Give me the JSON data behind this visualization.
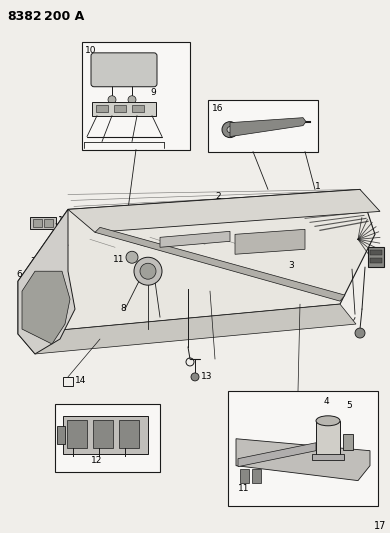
{
  "background_color": "#f0eeea",
  "line_color": "#1a1a1a",
  "text_color": "#000000",
  "fig_width": 3.9,
  "fig_height": 5.33,
  "dpi": 100,
  "header": "8382  200 A",
  "page_num": "17",
  "box_facecolor": "#f8f7f5",
  "box_edgecolor": "#1a1a1a"
}
